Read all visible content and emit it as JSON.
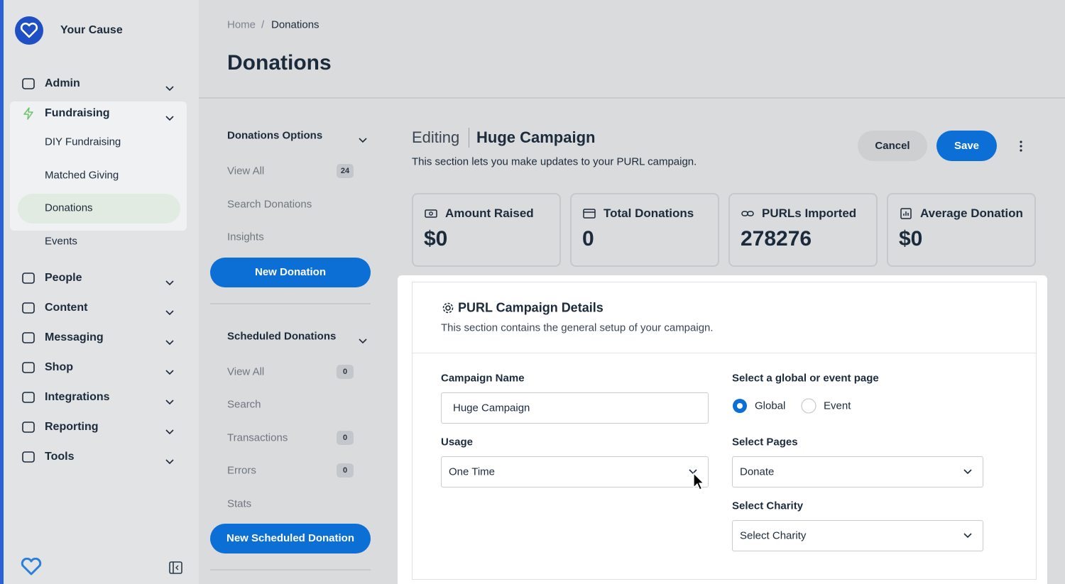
{
  "brand": "Your Cause",
  "nav": [
    {
      "label": "Admin"
    },
    {
      "label": "Fundraising",
      "children": [
        "DIY Fundraising",
        "Matched Giving",
        "Donations",
        "Events"
      ]
    },
    {
      "label": "People"
    },
    {
      "label": "Content"
    },
    {
      "label": "Messaging"
    },
    {
      "label": "Shop"
    },
    {
      "label": "Integrations"
    },
    {
      "label": "Reporting"
    },
    {
      "label": "Tools"
    }
  ],
  "breadcrumb": {
    "items": [
      "Home",
      "Donations"
    ],
    "separator": "/"
  },
  "page_title": "Donations",
  "option_groups": [
    {
      "title": "Donations Options",
      "items": [
        {
          "label": "View All",
          "count": 24
        },
        {
          "label": "Search Donations"
        },
        {
          "label": "Insights"
        }
      ],
      "button": "New Donation"
    },
    {
      "title": "Scheduled Donations",
      "items": [
        {
          "label": "View All",
          "count": 0
        },
        {
          "label": "Search"
        },
        {
          "label": "Transactions",
          "count": 0
        },
        {
          "label": "Errors",
          "count": 0
        },
        {
          "label": "Stats"
        }
      ],
      "button": "New Scheduled Donation"
    }
  ],
  "editing": {
    "prefix": "Editing",
    "name": "Huge Campaign",
    "description": "This section lets you make updates to your PURL campaign.",
    "cancel": "Cancel",
    "save": "Save"
  },
  "stats": [
    {
      "label": "Amount Raised",
      "value": "$0"
    },
    {
      "label": "Total Donations",
      "value": "0"
    },
    {
      "label": "PURLs Imported",
      "value": "278276"
    },
    {
      "label": "Average Donation",
      "value": "$0"
    }
  ],
  "details": {
    "title": "PURL Campaign Details",
    "description": "This section contains the general setup of your campaign.",
    "campaign_name": {
      "label": "Campaign Name",
      "value": "Huge Campaign"
    },
    "usage": {
      "label": "Usage",
      "value": "One Time"
    },
    "page_type": {
      "label": "Select a global or event page",
      "options": [
        {
          "label": "Global",
          "selected": true
        },
        {
          "label": "Event",
          "selected": false
        }
      ]
    },
    "pages": {
      "label": "Select Pages",
      "value": "Donate"
    },
    "charity": {
      "label": "Select Charity",
      "value": "Select Charity"
    }
  }
}
